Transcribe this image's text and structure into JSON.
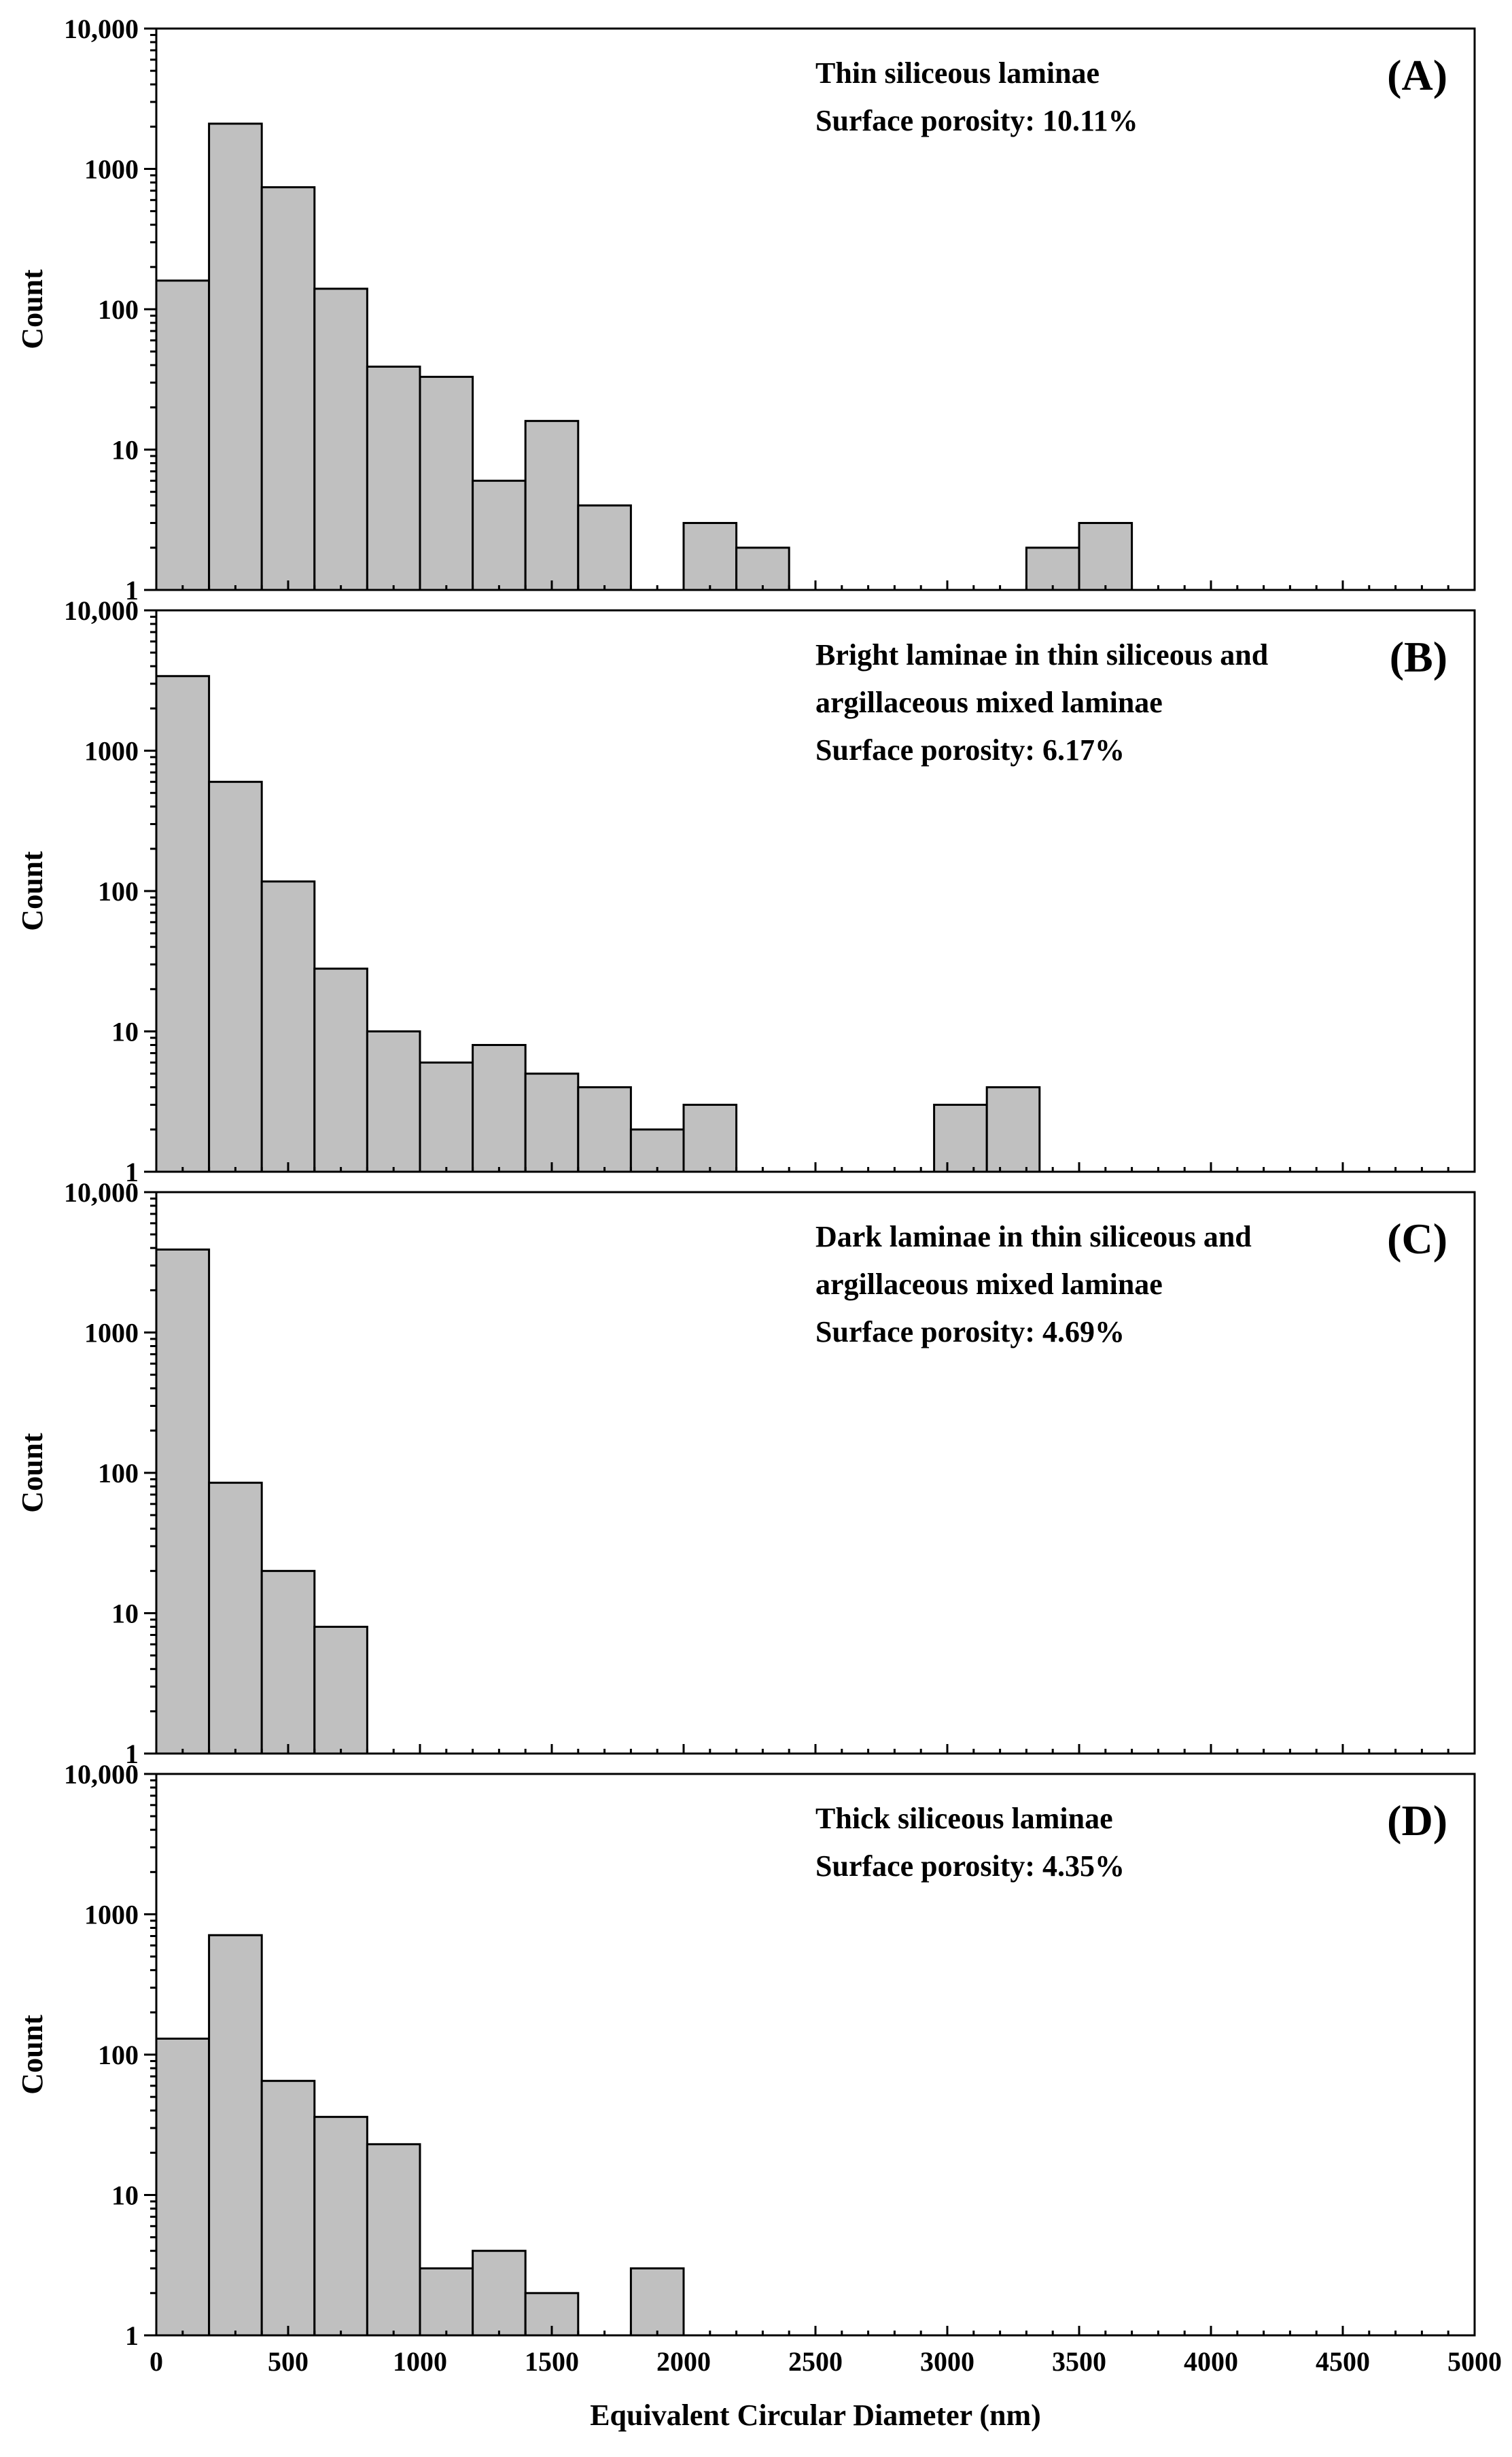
{
  "chart_data": [
    {
      "type": "bar",
      "panel_label": "(A)",
      "annotation": [
        "Thin siliceous laminae",
        "Surface porosity: 10.11%"
      ],
      "ylabel": "Count",
      "xlabel": "",
      "yscale": "log",
      "ylim": [
        1,
        10000
      ],
      "xlim": [
        0,
        5000
      ],
      "bin_width": 200,
      "bars": [
        {
          "x": 0,
          "value": 160
        },
        {
          "x": 200,
          "value": 2100
        },
        {
          "x": 400,
          "value": 740
        },
        {
          "x": 600,
          "value": 140
        },
        {
          "x": 800,
          "value": 39
        },
        {
          "x": 1000,
          "value": 33
        },
        {
          "x": 1200,
          "value": 6
        },
        {
          "x": 1400,
          "value": 16
        },
        {
          "x": 1600,
          "value": 4
        },
        {
          "x": 2000,
          "value": 3
        },
        {
          "x": 2200,
          "value": 2
        },
        {
          "x": 3300,
          "value": 2
        },
        {
          "x": 3500,
          "value": 3
        }
      ]
    },
    {
      "type": "bar",
      "panel_label": "(B)",
      "annotation": [
        "Bright laminae in thin siliceous and",
        "argillaceous mixed laminae",
        "Surface porosity: 6.17%"
      ],
      "ylabel": "Count",
      "xlabel": "",
      "yscale": "log",
      "ylim": [
        1,
        10000
      ],
      "xlim": [
        0,
        5000
      ],
      "bin_width": 200,
      "bars": [
        {
          "x": 0,
          "value": 3400
        },
        {
          "x": 200,
          "value": 600
        },
        {
          "x": 400,
          "value": 117
        },
        {
          "x": 600,
          "value": 28
        },
        {
          "x": 800,
          "value": 10
        },
        {
          "x": 1000,
          "value": 6
        },
        {
          "x": 1200,
          "value": 8
        },
        {
          "x": 1400,
          "value": 5
        },
        {
          "x": 1600,
          "value": 4
        },
        {
          "x": 1800,
          "value": 2
        },
        {
          "x": 2000,
          "value": 3
        },
        {
          "x": 2950,
          "value": 3
        },
        {
          "x": 3150,
          "value": 4
        }
      ]
    },
    {
      "type": "bar",
      "panel_label": "(C)",
      "annotation": [
        "Dark laminae in thin siliceous and",
        "argillaceous mixed laminae",
        "Surface porosity: 4.69%"
      ],
      "ylabel": "Count",
      "xlabel": "",
      "yscale": "log",
      "ylim": [
        1,
        10000
      ],
      "xlim": [
        0,
        5000
      ],
      "bin_width": 200,
      "bars": [
        {
          "x": 0,
          "value": 3900
        },
        {
          "x": 200,
          "value": 85
        },
        {
          "x": 400,
          "value": 20
        },
        {
          "x": 600,
          "value": 8
        }
      ]
    },
    {
      "type": "bar",
      "panel_label": "(D)",
      "annotation": [
        "Thick siliceous laminae",
        "Surface porosity: 4.35%"
      ],
      "ylabel": "Count",
      "xlabel": "Equivalent  Circular Diameter (nm)",
      "yscale": "log",
      "ylim": [
        1,
        10000
      ],
      "xlim": [
        0,
        5000
      ],
      "bin_width": 200,
      "bars": [
        {
          "x": 0,
          "value": 130
        },
        {
          "x": 200,
          "value": 710
        },
        {
          "x": 400,
          "value": 65
        },
        {
          "x": 600,
          "value": 36
        },
        {
          "x": 800,
          "value": 23
        },
        {
          "x": 1000,
          "value": 3
        },
        {
          "x": 1200,
          "value": 4
        },
        {
          "x": 1400,
          "value": 2
        },
        {
          "x": 1800,
          "value": 3
        }
      ]
    }
  ],
  "axes": {
    "y_tick_values": [
      1,
      10,
      100,
      1000,
      10000
    ],
    "y_tick_labels": [
      "1",
      "10",
      "100",
      "1000",
      "10,000"
    ],
    "x_tick_values": [
      0,
      500,
      1000,
      1500,
      2000,
      2500,
      3000,
      3500,
      4000,
      4500,
      5000
    ],
    "x_tick_labels": [
      "0",
      "500",
      "1000",
      "1500",
      "2000",
      "2500",
      "3000",
      "3500",
      "4000",
      "4500",
      "5000"
    ]
  }
}
